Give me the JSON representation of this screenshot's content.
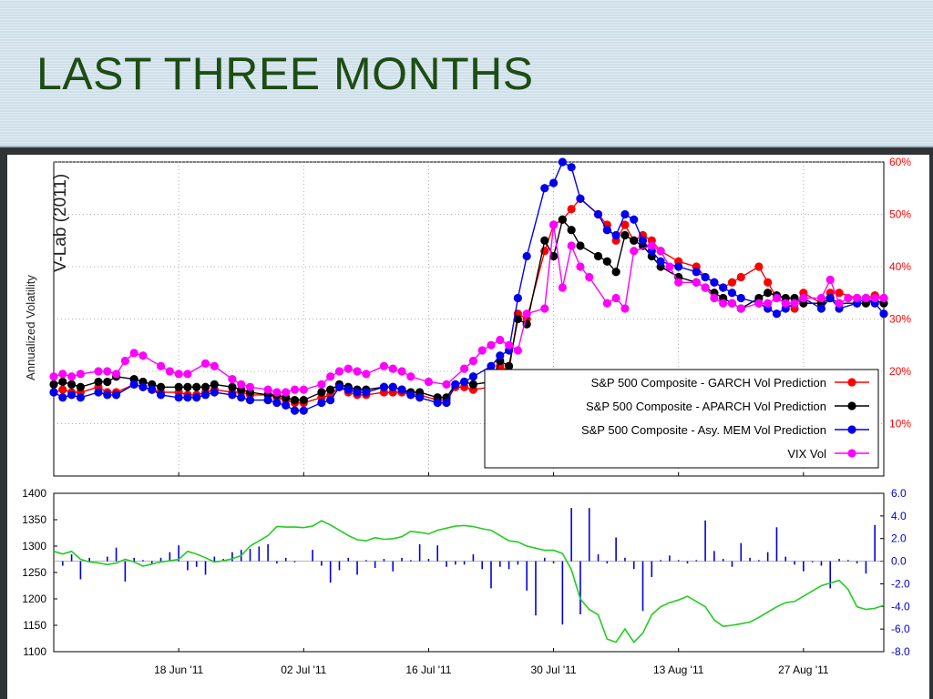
{
  "slide": {
    "title": "LAST THREE MONTHS"
  },
  "chart_data": [
    {
      "type": "line",
      "title": "",
      "ylabel": "Annualized Volatility",
      "ylabel2": "V-Lab (2011)",
      "yticks_right": [
        "10%",
        "20%",
        "30%",
        "40%",
        "50%",
        "60%"
      ],
      "ylim": [
        0,
        60
      ],
      "grid": true,
      "legend_position": "bottom-right",
      "colors": {
        "GARCH": "#ff0000",
        "APARCH": "#000000",
        "MEM": "#0000ee",
        "VIX": "#ff00ff"
      },
      "x_ticks": [
        "18 Jun '11",
        "02 Jul '11",
        "16 Jul '11",
        "30 Jul '11",
        "13 Aug '11",
        "27 Aug '11"
      ],
      "x_day_range": [
        0,
        93
      ],
      "series": [
        {
          "name": "S&P 500 Composite - GARCH  Vol Prediction",
          "x": [
            0,
            1,
            2,
            3,
            5,
            6,
            7,
            9,
            10,
            11,
            12,
            14,
            15,
            16,
            17,
            18,
            20,
            21,
            22,
            24,
            25,
            26,
            27,
            28,
            30,
            31,
            32,
            33,
            34,
            35,
            37,
            38,
            39,
            40,
            41,
            43,
            44,
            45,
            46,
            47,
            49,
            50,
            51,
            52,
            53,
            55,
            56,
            57,
            58,
            59,
            61,
            62,
            63,
            64,
            65,
            66,
            67,
            68,
            70,
            72,
            73,
            74,
            75,
            76,
            77,
            79,
            80,
            81,
            82,
            83,
            84,
            86,
            87,
            88,
            90,
            91,
            92,
            93
          ],
          "y": [
            16,
            16.5,
            16,
            16,
            17,
            16,
            16,
            17.5,
            17,
            16.5,
            16,
            16,
            15.5,
            15.5,
            16,
            16.5,
            16,
            16,
            15.5,
            15.5,
            15,
            14.5,
            14,
            14,
            15,
            15.5,
            17,
            16,
            15.5,
            15.5,
            16,
            16,
            16,
            15.5,
            15.5,
            14.5,
            14.5,
            17,
            17,
            16.5,
            17,
            21,
            20,
            31,
            30,
            43,
            48,
            49,
            51,
            53,
            50,
            48,
            45,
            48,
            45,
            46,
            45,
            43,
            41,
            40,
            38,
            37,
            36,
            37,
            38,
            40,
            37,
            34,
            33,
            32,
            35,
            33,
            35,
            35,
            34,
            34,
            34.5,
            34
          ]
        },
        {
          "name": "S&P 500 Composite - APARCH  Vol Prediction",
          "x": [
            0,
            1,
            2,
            3,
            5,
            6,
            7,
            9,
            10,
            11,
            12,
            14,
            15,
            16,
            17,
            18,
            20,
            21,
            22,
            24,
            25,
            26,
            27,
            28,
            30,
            31,
            32,
            33,
            34,
            35,
            37,
            38,
            39,
            40,
            41,
            43,
            44,
            45,
            46,
            47,
            49,
            50,
            51,
            52,
            53,
            55,
            56,
            57,
            58,
            59,
            61,
            62,
            63,
            64,
            65,
            66,
            67,
            68,
            70,
            72,
            73,
            74,
            75,
            76,
            77,
            79,
            80,
            81,
            82,
            83,
            84,
            86,
            87,
            88,
            90,
            91,
            92,
            93
          ],
          "y": [
            17.5,
            18,
            17.5,
            17,
            18,
            18,
            19,
            18.5,
            18,
            17.5,
            17,
            17,
            17,
            17,
            17,
            17.5,
            17,
            16.5,
            16,
            15.5,
            15.5,
            15,
            14.5,
            14.5,
            16,
            16.5,
            17.5,
            17,
            16.5,
            16.5,
            17,
            17,
            16.5,
            16,
            16,
            15,
            15,
            17.5,
            18,
            17.5,
            18,
            22,
            21,
            30,
            29,
            45,
            42,
            49,
            47,
            44,
            42,
            41,
            39,
            46,
            45,
            44,
            42,
            40,
            38,
            37,
            36,
            35,
            34,
            33,
            32,
            34,
            35,
            34.5,
            34,
            34,
            33,
            33,
            34,
            33,
            33,
            33,
            33.5,
            33
          ]
        },
        {
          "name": "S&P 500 Composite - Asy. MEM  Vol Prediction",
          "x": [
            0,
            1,
            2,
            3,
            5,
            6,
            7,
            9,
            10,
            11,
            12,
            14,
            15,
            16,
            17,
            18,
            20,
            21,
            22,
            24,
            25,
            26,
            27,
            28,
            30,
            31,
            32,
            33,
            34,
            35,
            37,
            38,
            39,
            40,
            41,
            43,
            44,
            45,
            46,
            47,
            49,
            50,
            51,
            52,
            53,
            55,
            56,
            57,
            58,
            59,
            61,
            62,
            63,
            64,
            65,
            66,
            67,
            68,
            70,
            72,
            73,
            74,
            75,
            76,
            77,
            79,
            80,
            81,
            82,
            83,
            84,
            86,
            87,
            88,
            90,
            91,
            92,
            93
          ],
          "y": [
            16,
            15,
            15.5,
            15,
            16,
            15.5,
            15.5,
            17.5,
            17,
            16.5,
            15.5,
            15,
            15,
            15,
            15.5,
            16,
            15.5,
            15,
            14.5,
            14.5,
            14,
            13.5,
            12.5,
            12.5,
            14,
            14.5,
            17,
            16.5,
            16,
            16,
            17,
            17,
            16.5,
            15.5,
            15,
            14,
            14,
            17.5,
            18,
            19,
            21,
            23,
            24,
            34,
            42,
            55,
            56,
            60,
            59,
            53,
            50,
            47,
            46,
            50,
            49,
            45,
            43,
            41,
            40,
            39,
            38,
            37,
            36,
            35,
            34,
            33,
            32,
            31,
            32,
            33,
            34,
            32,
            34,
            32,
            33,
            34,
            33,
            31
          ]
        },
        {
          "name": "VIX Vol",
          "x": [
            0,
            1,
            2,
            3,
            5,
            6,
            7,
            8,
            9,
            10,
            12,
            13,
            14,
            15,
            17,
            18,
            20,
            21,
            22,
            24,
            25,
            26,
            27,
            28,
            30,
            31,
            32,
            33,
            34,
            35,
            37,
            38,
            39,
            40,
            42,
            44,
            46,
            47,
            48,
            49,
            50,
            51,
            52,
            53,
            55,
            56,
            57,
            58,
            59,
            60,
            62,
            63,
            64,
            65,
            67,
            68,
            69,
            70,
            72,
            73,
            74,
            75,
            76,
            77,
            79,
            80,
            81,
            82,
            83,
            84,
            86,
            87,
            88,
            89,
            90,
            91,
            92,
            93
          ],
          "y": [
            19,
            19.5,
            19,
            19.5,
            20,
            20,
            19.5,
            22,
            23.5,
            23,
            21,
            20,
            19.5,
            19.5,
            21.5,
            21,
            18.5,
            17.5,
            17,
            16.5,
            16,
            16,
            16.5,
            16.5,
            17.5,
            19,
            20,
            20.5,
            20,
            19.5,
            21,
            20.5,
            20,
            19,
            18,
            17.5,
            20.5,
            22,
            24,
            25,
            26,
            25,
            24,
            31,
            32,
            48,
            36,
            44,
            40,
            38,
            33,
            34,
            32,
            43,
            44,
            43,
            40,
            37,
            37,
            36,
            34,
            33,
            33,
            32,
            33,
            33,
            34,
            33,
            33,
            34,
            34,
            37.5,
            33,
            34,
            34,
            34,
            34,
            34
          ]
        }
      ]
    },
    {
      "type": "line",
      "title": "",
      "yticks_left": [
        "1100",
        "1150",
        "1200",
        "1250",
        "1300",
        "1350",
        "1400"
      ],
      "ylim_left": [
        1100,
        1400
      ],
      "yticks_right": [
        "-8.0",
        "-6.0",
        "-4.0",
        "-2.0",
        "0.0",
        "2.0",
        "4.0",
        "6.0"
      ],
      "ylim_right": [
        -8,
        6
      ],
      "colors": {
        "price": "#22cc22",
        "returns": "#0000dd"
      },
      "series": [
        {
          "name": "",
          "x": [
            0,
            1,
            2,
            3,
            4,
            5,
            6,
            7,
            8,
            9,
            10,
            11,
            12,
            13,
            14,
            15,
            16,
            17,
            18,
            19,
            20,
            21,
            22,
            23,
            24,
            25,
            26,
            27,
            28,
            29,
            30,
            31,
            32,
            33,
            34,
            35,
            36,
            37,
            38,
            39,
            40,
            41,
            42,
            43,
            44,
            45,
            46,
            47,
            48,
            49,
            50,
            51,
            52,
            53,
            54,
            55,
            56,
            57,
            58,
            59,
            60,
            61,
            62,
            63,
            64,
            65,
            66,
            67,
            68,
            69,
            70,
            71,
            72,
            73,
            74,
            75,
            76,
            77,
            78,
            79,
            80,
            81,
            82,
            83,
            84,
            85,
            86,
            87,
            88,
            89,
            90,
            91,
            92,
            93
          ],
          "y": [
            1290,
            1285,
            1290,
            1275,
            1270,
            1268,
            1265,
            1268,
            1275,
            1270,
            1262,
            1266,
            1270,
            1272,
            1275,
            1290,
            1285,
            1278,
            1270,
            1272,
            1276,
            1282,
            1300,
            1310,
            1320,
            1337,
            1336,
            1336,
            1335,
            1338,
            1348,
            1340,
            1330,
            1320,
            1312,
            1310,
            1316,
            1313,
            1314,
            1318,
            1328,
            1326,
            1323,
            1330,
            1334,
            1338,
            1339,
            1337,
            1333,
            1330,
            1320,
            1310,
            1308,
            1300,
            1296,
            1292,
            1292,
            1286,
            1255,
            1200,
            1180,
            1170,
            1124,
            1118,
            1143,
            1118,
            1135,
            1170,
            1185,
            1193,
            1198,
            1205,
            1195,
            1185,
            1160,
            1148,
            1150,
            1153,
            1156,
            1165,
            1175,
            1185,
            1193,
            1195,
            1205,
            1215,
            1225,
            1230,
            1235,
            1218,
            1185,
            1180,
            1182,
            1188
          ]
        },
        {
          "name": "",
          "x": [
            1,
            2,
            3,
            4,
            6,
            7,
            8,
            9,
            10,
            11,
            12,
            13,
            14,
            15,
            16,
            17,
            18,
            19,
            20,
            21,
            22,
            23,
            24,
            25,
            26,
            27,
            29,
            30,
            31,
            32,
            33,
            34,
            35,
            36,
            37,
            38,
            39,
            40,
            41,
            42,
            43,
            44,
            45,
            46,
            47,
            48,
            49,
            50,
            51,
            52,
            53,
            54,
            55,
            56,
            57,
            58,
            59,
            60,
            61,
            62,
            63,
            64,
            65,
            66,
            67,
            68,
            69,
            70,
            71,
            72,
            73,
            74,
            75,
            76,
            77,
            78,
            79,
            80,
            81,
            82,
            83,
            84,
            85,
            86,
            87,
            88,
            89,
            90,
            91,
            92
          ],
          "y": [
            -0.4,
            0.6,
            -1.6,
            0.3,
            0.4,
            1.2,
            -1.8,
            0.3,
            0.1,
            -0.2,
            0.3,
            0.8,
            1.4,
            -0.8,
            -0.5,
            -1.2,
            0.4,
            0.2,
            0.8,
            1.0,
            1.1,
            1.3,
            1.5,
            -0.2,
            0.3,
            -0.1,
            1.0,
            -0.4,
            -1.9,
            -0.8,
            0.3,
            -1.2,
            0.1,
            -0.6,
            0.2,
            -0.9,
            0.3,
            0.1,
            1.5,
            0.2,
            1.4,
            -0.5,
            -0.3,
            -0.3,
            0.6,
            -0.7,
            -2.4,
            -0.5,
            -0.7,
            -0.3,
            -2.6,
            -4.8,
            0.3,
            -0.2,
            -5.6,
            4.7,
            -4.7,
            4.7,
            0.6,
            -0.2,
            2.1,
            0.3,
            -0.7,
            -4.4,
            -1.4,
            0.1,
            0.5,
            0.1,
            -0.2,
            0.1,
            3.6,
            0.9,
            0.2,
            -0.5,
            1.6,
            0.3,
            0.1,
            0.8,
            3.0,
            0.4,
            -0.3,
            -0.9,
            -0.1,
            -0.4,
            -2.4,
            0.2,
            0.1,
            -0.2,
            -1.1,
            3.2
          ]
        }
      ]
    }
  ]
}
